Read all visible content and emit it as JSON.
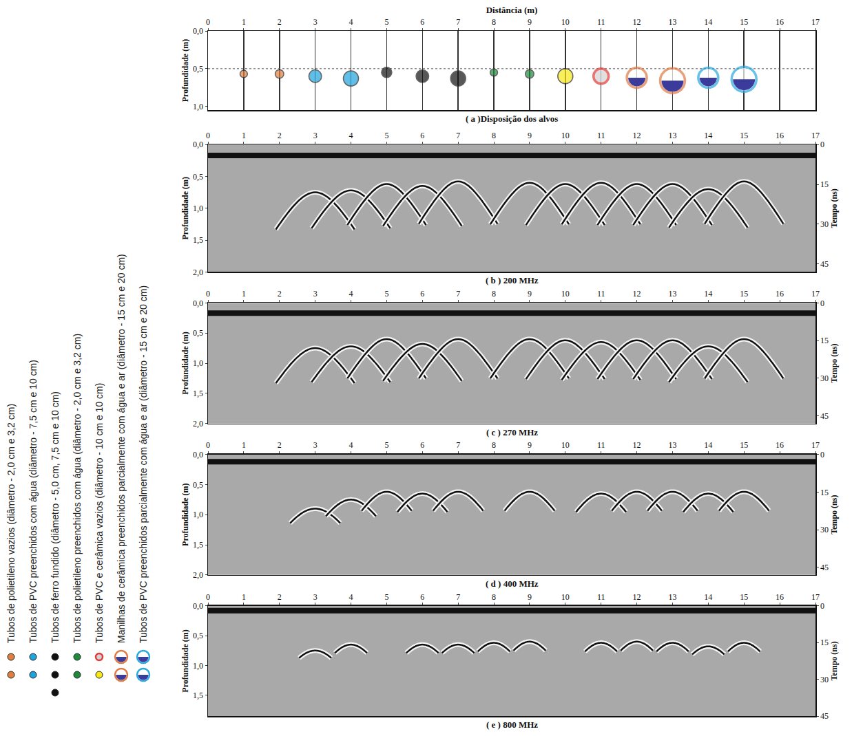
{
  "side_legend": [
    {
      "text": "Tubos de polietileno vazios (diâmetro - 2,0 cm e 3,2 cm)",
      "symbols": [
        {
          "color": "#de7f3f",
          "marker": "disk"
        },
        {
          "color": "#de7f3f",
          "marker": "disk"
        }
      ]
    },
    {
      "text": "Tubos de PVC preenchidos com água (diâmetro - 7,5 cm e 10 cm)",
      "symbols": [
        {
          "color": "#1fa3dc",
          "marker": "disk"
        },
        {
          "color": "#1fa3dc",
          "marker": "disk"
        }
      ]
    },
    {
      "text": "Tubos de ferro fundido (diâmetro - 5,0 cm, 7,5 cm e 10 cm)",
      "symbols": [
        {
          "color": "#111111",
          "marker": "disk"
        },
        {
          "color": "#111111",
          "marker": "disk"
        },
        {
          "color": "#111111",
          "marker": "disk"
        }
      ]
    },
    {
      "text": "Tubos de polietileno preenchidos com água (diâmetro - 2,0 cm e 3,2 cm)",
      "symbols": [
        {
          "color": "#1e8a3c",
          "marker": "disk"
        },
        {
          "color": "#1e8a3c",
          "marker": "disk"
        }
      ]
    },
    {
      "text": "Tubos de PVC e cerâmica vazios (diâmetro - 10 cm e 10 cm)",
      "symbols": [
        {
          "color": "#d3d3d3",
          "marker": "ring_red"
        },
        {
          "color": "#f7e817",
          "marker": "disk"
        }
      ]
    },
    {
      "text": "Manilhas de cerâmica preenchidos parcialmente com água e ar (diâmetro - 15 cm e 20 cm)",
      "symbols": [
        {
          "color": "#ffffff",
          "marker": "ring_orange_water"
        },
        {
          "color": "#ffffff",
          "marker": "ring_orange_water"
        }
      ]
    },
    {
      "text": "Tubos de PVC preenchidos parcialmente com água e ar (diâmetro - 15 cm e 20 cm)",
      "symbols": [
        {
          "color": "#ffffff",
          "marker": "ring_blue_water"
        },
        {
          "color": "#ffffff",
          "marker": "ring_blue_water"
        }
      ]
    }
  ],
  "chart_data": [
    {
      "type": "scatter",
      "title": "( a )Disposição dos alvos",
      "x_label": "Distância (m)",
      "y_label": "Profundidade (m)",
      "xlim": [
        0,
        17
      ],
      "xticks": [
        0,
        1,
        2,
        3,
        4,
        5,
        6,
        7,
        8,
        9,
        10,
        11,
        12,
        13,
        14,
        15,
        16,
        17
      ],
      "ylim": [
        0,
        1.05
      ],
      "yticks": [
        {
          "value": 0,
          "label": "0,0"
        },
        {
          "value": 0.5,
          "label": "0,5"
        },
        {
          "value": 1,
          "label": "1,0"
        }
      ],
      "grid": true,
      "dotted_line_depth": 0.5,
      "targets": [
        {
          "x": 1,
          "depth": 0.57,
          "diameter": 2.0,
          "color": "#de7f3f",
          "marker": "disk"
        },
        {
          "x": 2,
          "depth": 0.57,
          "diameter": 3.2,
          "color": "#de7f3f",
          "marker": "disk"
        },
        {
          "x": 3,
          "depth": 0.6,
          "diameter": 7.5,
          "color": "#1fa3dc",
          "marker": "disk"
        },
        {
          "x": 4,
          "depth": 0.63,
          "diameter": 10,
          "color": "#1fa3dc",
          "marker": "disk"
        },
        {
          "x": 5,
          "depth": 0.55,
          "diameter": 5.0,
          "color": "#111111",
          "marker": "disk"
        },
        {
          "x": 6,
          "depth": 0.6,
          "diameter": 7.5,
          "color": "#111111",
          "marker": "disk"
        },
        {
          "x": 7,
          "depth": 0.63,
          "diameter": 10,
          "color": "#111111",
          "marker": "disk"
        },
        {
          "x": 8,
          "depth": 0.55,
          "diameter": 2.0,
          "color": "#1e8a3c",
          "marker": "disk"
        },
        {
          "x": 9,
          "depth": 0.57,
          "diameter": 3.2,
          "color": "#1e8a3c",
          "marker": "disk"
        },
        {
          "x": 10,
          "depth": 0.6,
          "diameter": 10,
          "color": "#f7e817",
          "marker": "disk"
        },
        {
          "x": 11,
          "depth": 0.6,
          "diameter": 10,
          "color": "#d3d3d3",
          "marker": "ring_red"
        },
        {
          "x": 12,
          "depth": 0.62,
          "diameter": 15,
          "color": "#ffffff",
          "marker": "ring_orange_water"
        },
        {
          "x": 13,
          "depth": 0.66,
          "diameter": 20,
          "color": "#ffffff",
          "marker": "ring_orange_water"
        },
        {
          "x": 14,
          "depth": 0.62,
          "diameter": 15,
          "color": "#ffffff",
          "marker": "ring_blue_water"
        },
        {
          "x": 15,
          "depth": 0.64,
          "diameter": 20,
          "color": "#ffffff",
          "marker": "ring_blue_water"
        }
      ]
    },
    {
      "type": "radargram",
      "title": "( b ) 200 MHz",
      "y_label": "Profundidade (m)",
      "y2_label": "Tempo (ns)",
      "xlim": [
        0,
        17
      ],
      "xticks": [
        0,
        1,
        2,
        3,
        4,
        5,
        6,
        7,
        8,
        9,
        10,
        11,
        12,
        13,
        14,
        15,
        16,
        17
      ],
      "ylim": [
        0,
        2
      ],
      "yticks": [
        {
          "value": 0,
          "label": "0,0"
        },
        {
          "value": 0.5,
          "label": "0,5"
        },
        {
          "value": 1,
          "label": "1,0"
        },
        {
          "value": 1.5,
          "label": "1,5"
        },
        {
          "value": 2,
          "label": "2,0"
        }
      ],
      "y2lim": [
        0,
        48
      ],
      "y2ticks": [
        0,
        15,
        30,
        45
      ],
      "grid": false,
      "surface_depth": 0.17,
      "reflections": [
        {
          "x": 3,
          "depth": 0.75
        },
        {
          "x": 4,
          "depth": 0.72
        },
        {
          "x": 5,
          "depth": 0.62
        },
        {
          "x": 6,
          "depth": 0.65
        },
        {
          "x": 7,
          "depth": 0.58
        },
        {
          "x": 9,
          "depth": 0.6
        },
        {
          "x": 10,
          "depth": 0.62
        },
        {
          "x": 11,
          "depth": 0.6
        },
        {
          "x": 12,
          "depth": 0.62
        },
        {
          "x": 13,
          "depth": 0.62
        },
        {
          "x": 14,
          "depth": 0.7
        },
        {
          "x": 15,
          "depth": 0.58
        }
      ]
    },
    {
      "type": "radargram",
      "title": "( c ) 270 MHz",
      "y_label": "Profundidade (m)",
      "y2_label": "Tempo (ns)",
      "xlim": [
        0,
        17
      ],
      "xticks": [
        0,
        1,
        2,
        3,
        4,
        5,
        6,
        7,
        8,
        9,
        10,
        11,
        12,
        13,
        14,
        15,
        16,
        17
      ],
      "ylim": [
        0,
        2
      ],
      "yticks": [
        {
          "value": 0,
          "label": "0,0"
        },
        {
          "value": 0.5,
          "label": "0,5"
        },
        {
          "value": 1,
          "label": "1,0"
        },
        {
          "value": 1.5,
          "label": "1,5"
        },
        {
          "value": 2,
          "label": "2,0"
        }
      ],
      "y2lim": [
        0,
        48
      ],
      "y2ticks": [
        0,
        15,
        30,
        45
      ],
      "grid": false,
      "surface_depth": 0.17,
      "reflections": [
        {
          "x": 3,
          "depth": 0.75
        },
        {
          "x": 4,
          "depth": 0.72
        },
        {
          "x": 5,
          "depth": 0.6
        },
        {
          "x": 6,
          "depth": 0.68
        },
        {
          "x": 7,
          "depth": 0.6
        },
        {
          "x": 9,
          "depth": 0.6
        },
        {
          "x": 10,
          "depth": 0.62
        },
        {
          "x": 11,
          "depth": 0.65
        },
        {
          "x": 12,
          "depth": 0.62
        },
        {
          "x": 13,
          "depth": 0.62
        },
        {
          "x": 14,
          "depth": 0.72
        },
        {
          "x": 15,
          "depth": 0.6
        }
      ]
    },
    {
      "type": "radargram",
      "title": "( d ) 400 MHz",
      "y_label": "Profundidade (m)",
      "y2_label": "Tempo (ns)",
      "xlim": [
        0,
        17
      ],
      "xticks": [
        0,
        1,
        2,
        3,
        4,
        5,
        6,
        7,
        8,
        9,
        10,
        11,
        12,
        13,
        14,
        15,
        16,
        17
      ],
      "ylim": [
        0,
        2
      ],
      "yticks": [
        {
          "value": 0,
          "label": "0,0"
        },
        {
          "value": 0.5,
          "label": "0,5"
        },
        {
          "value": 1,
          "label": "1,0"
        },
        {
          "value": 1.5,
          "label": "1,5"
        },
        {
          "value": 2,
          "label": "2,0"
        }
      ],
      "y2lim": [
        0,
        48
      ],
      "y2ticks": [
        0,
        15,
        30,
        45
      ],
      "grid": false,
      "surface_depth": 0.12,
      "reflections": [
        {
          "x": 3,
          "depth": 0.9
        },
        {
          "x": 4,
          "depth": 0.75
        },
        {
          "x": 5,
          "depth": 0.62
        },
        {
          "x": 6,
          "depth": 0.65
        },
        {
          "x": 7,
          "depth": 0.62
        },
        {
          "x": 9,
          "depth": 0.62
        },
        {
          "x": 11,
          "depth": 0.65
        },
        {
          "x": 12,
          "depth": 0.62
        },
        {
          "x": 13,
          "depth": 0.62
        },
        {
          "x": 14,
          "depth": 0.65
        },
        {
          "x": 15,
          "depth": 0.62
        }
      ]
    },
    {
      "type": "radargram",
      "title": "( e ) 800 MHz",
      "y_label": "Profundidade (m)",
      "y2_label": "Tempo (ns)",
      "xlim": [
        0,
        17
      ],
      "xticks": [
        0,
        1,
        2,
        3,
        4,
        5,
        6,
        7,
        8,
        9,
        10,
        11,
        12,
        13,
        14,
        15,
        16,
        17
      ],
      "ylim": [
        0,
        1.85
      ],
      "yticks": [
        {
          "value": 0,
          "label": "0,0"
        },
        {
          "value": 0.5,
          "label": "0,5"
        },
        {
          "value": 1,
          "label": "1,0"
        },
        {
          "value": 1.5,
          "label": "1,5"
        }
      ],
      "y2lim": [
        0,
        45
      ],
      "y2ticks": [
        0,
        15,
        30,
        45
      ],
      "grid": false,
      "surface_depth": 0.08,
      "reflections": [
        {
          "x": 3,
          "depth": 0.75
        },
        {
          "x": 4,
          "depth": 0.65
        },
        {
          "x": 6,
          "depth": 0.65
        },
        {
          "x": 7,
          "depth": 0.65
        },
        {
          "x": 8,
          "depth": 0.62
        },
        {
          "x": 9,
          "depth": 0.6
        },
        {
          "x": 11,
          "depth": 0.62
        },
        {
          "x": 12,
          "depth": 0.6
        },
        {
          "x": 13,
          "depth": 0.62
        },
        {
          "x": 14,
          "depth": 0.68
        },
        {
          "x": 15,
          "depth": 0.62
        }
      ]
    }
  ]
}
